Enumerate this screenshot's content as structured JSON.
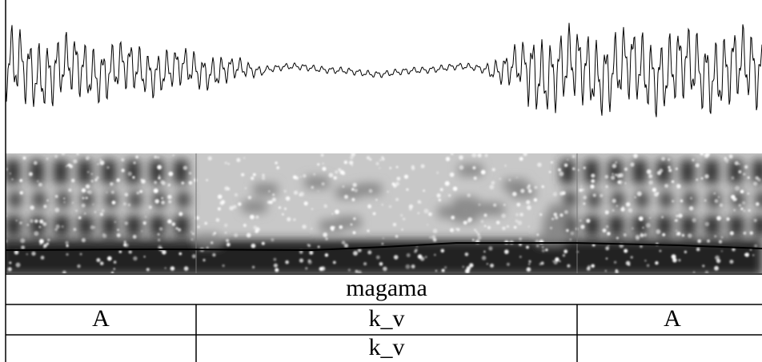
{
  "tiers": [
    {
      "intervals": [
        {
          "label": "magama"
        }
      ]
    },
    {
      "intervals": [
        {
          "label": "A"
        },
        {
          "label": "k_v"
        },
        {
          "label": "A"
        }
      ]
    },
    {
      "intervals": [
        {
          "label": "k_v"
        }
      ]
    }
  ]
}
